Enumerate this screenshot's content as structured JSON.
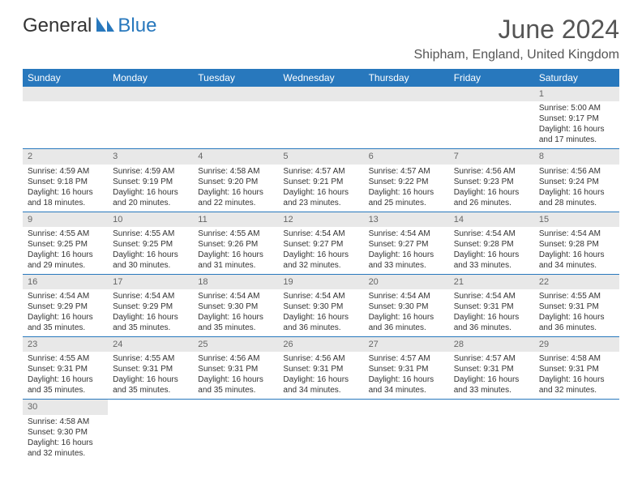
{
  "logo": {
    "text1": "General",
    "text2": "Blue"
  },
  "title": "June 2024",
  "location": "Shipham, England, United Kingdom",
  "colors": {
    "header_bg": "#2878bd",
    "header_fg": "#ffffff",
    "daynum_bg": "#e8e8e8",
    "daynum_fg": "#666666",
    "text": "#333333",
    "rule": "#2878bd"
  },
  "dayHeaders": [
    "Sunday",
    "Monday",
    "Tuesday",
    "Wednesday",
    "Thursday",
    "Friday",
    "Saturday"
  ],
  "weeks": [
    [
      null,
      null,
      null,
      null,
      null,
      null,
      {
        "n": "1",
        "sunrise": "5:00 AM",
        "sunset": "9:17 PM",
        "daylight": "16 hours and 17 minutes."
      }
    ],
    [
      {
        "n": "2",
        "sunrise": "4:59 AM",
        "sunset": "9:18 PM",
        "daylight": "16 hours and 18 minutes."
      },
      {
        "n": "3",
        "sunrise": "4:59 AM",
        "sunset": "9:19 PM",
        "daylight": "16 hours and 20 minutes."
      },
      {
        "n": "4",
        "sunrise": "4:58 AM",
        "sunset": "9:20 PM",
        "daylight": "16 hours and 22 minutes."
      },
      {
        "n": "5",
        "sunrise": "4:57 AM",
        "sunset": "9:21 PM",
        "daylight": "16 hours and 23 minutes."
      },
      {
        "n": "6",
        "sunrise": "4:57 AM",
        "sunset": "9:22 PM",
        "daylight": "16 hours and 25 minutes."
      },
      {
        "n": "7",
        "sunrise": "4:56 AM",
        "sunset": "9:23 PM",
        "daylight": "16 hours and 26 minutes."
      },
      {
        "n": "8",
        "sunrise": "4:56 AM",
        "sunset": "9:24 PM",
        "daylight": "16 hours and 28 minutes."
      }
    ],
    [
      {
        "n": "9",
        "sunrise": "4:55 AM",
        "sunset": "9:25 PM",
        "daylight": "16 hours and 29 minutes."
      },
      {
        "n": "10",
        "sunrise": "4:55 AM",
        "sunset": "9:25 PM",
        "daylight": "16 hours and 30 minutes."
      },
      {
        "n": "11",
        "sunrise": "4:55 AM",
        "sunset": "9:26 PM",
        "daylight": "16 hours and 31 minutes."
      },
      {
        "n": "12",
        "sunrise": "4:54 AM",
        "sunset": "9:27 PM",
        "daylight": "16 hours and 32 minutes."
      },
      {
        "n": "13",
        "sunrise": "4:54 AM",
        "sunset": "9:27 PM",
        "daylight": "16 hours and 33 minutes."
      },
      {
        "n": "14",
        "sunrise": "4:54 AM",
        "sunset": "9:28 PM",
        "daylight": "16 hours and 33 minutes."
      },
      {
        "n": "15",
        "sunrise": "4:54 AM",
        "sunset": "9:28 PM",
        "daylight": "16 hours and 34 minutes."
      }
    ],
    [
      {
        "n": "16",
        "sunrise": "4:54 AM",
        "sunset": "9:29 PM",
        "daylight": "16 hours and 35 minutes."
      },
      {
        "n": "17",
        "sunrise": "4:54 AM",
        "sunset": "9:29 PM",
        "daylight": "16 hours and 35 minutes."
      },
      {
        "n": "18",
        "sunrise": "4:54 AM",
        "sunset": "9:30 PM",
        "daylight": "16 hours and 35 minutes."
      },
      {
        "n": "19",
        "sunrise": "4:54 AM",
        "sunset": "9:30 PM",
        "daylight": "16 hours and 36 minutes."
      },
      {
        "n": "20",
        "sunrise": "4:54 AM",
        "sunset": "9:30 PM",
        "daylight": "16 hours and 36 minutes."
      },
      {
        "n": "21",
        "sunrise": "4:54 AM",
        "sunset": "9:31 PM",
        "daylight": "16 hours and 36 minutes."
      },
      {
        "n": "22",
        "sunrise": "4:55 AM",
        "sunset": "9:31 PM",
        "daylight": "16 hours and 36 minutes."
      }
    ],
    [
      {
        "n": "23",
        "sunrise": "4:55 AM",
        "sunset": "9:31 PM",
        "daylight": "16 hours and 35 minutes."
      },
      {
        "n": "24",
        "sunrise": "4:55 AM",
        "sunset": "9:31 PM",
        "daylight": "16 hours and 35 minutes."
      },
      {
        "n": "25",
        "sunrise": "4:56 AM",
        "sunset": "9:31 PM",
        "daylight": "16 hours and 35 minutes."
      },
      {
        "n": "26",
        "sunrise": "4:56 AM",
        "sunset": "9:31 PM",
        "daylight": "16 hours and 34 minutes."
      },
      {
        "n": "27",
        "sunrise": "4:57 AM",
        "sunset": "9:31 PM",
        "daylight": "16 hours and 34 minutes."
      },
      {
        "n": "28",
        "sunrise": "4:57 AM",
        "sunset": "9:31 PM",
        "daylight": "16 hours and 33 minutes."
      },
      {
        "n": "29",
        "sunrise": "4:58 AM",
        "sunset": "9:31 PM",
        "daylight": "16 hours and 32 minutes."
      }
    ],
    [
      {
        "n": "30",
        "sunrise": "4:58 AM",
        "sunset": "9:30 PM",
        "daylight": "16 hours and 32 minutes."
      },
      null,
      null,
      null,
      null,
      null,
      null
    ]
  ],
  "labels": {
    "sunrise": "Sunrise:",
    "sunset": "Sunset:",
    "daylight": "Daylight:"
  }
}
